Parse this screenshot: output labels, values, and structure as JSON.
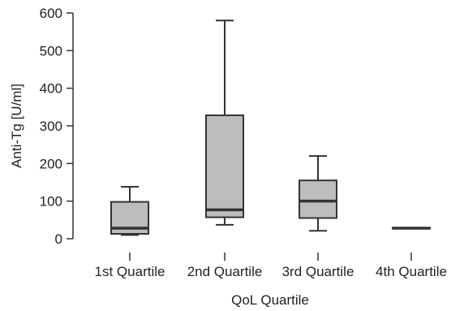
{
  "chart_data": {
    "type": "boxplot",
    "title": "",
    "xlabel": "QoL Quartile",
    "ylabel": "Anti-Tg [U/ml]",
    "ylim": [
      0,
      600
    ],
    "yticks": [
      0,
      100,
      200,
      300,
      400,
      500,
      600
    ],
    "grid": false,
    "categories": [
      "1st Quartile",
      "2nd Quartile",
      "3rd Quartile",
      "4th Quartile"
    ],
    "boxes": [
      {
        "category": "1st Quartile",
        "whisker_low": 10,
        "q1": 13,
        "median": 28,
        "q3": 98,
        "whisker_high": 138
      },
      {
        "category": "2nd Quartile",
        "whisker_low": 37,
        "q1": 57,
        "median": 77,
        "q3": 328,
        "whisker_high": 580
      },
      {
        "category": "3rd Quartile",
        "whisker_low": 21,
        "q1": 55,
        "median": 100,
        "q3": 155,
        "whisker_high": 220
      },
      {
        "category": "4th Quartile",
        "whisker_low": 27,
        "q1": 27,
        "median": 28,
        "q3": 29,
        "whisker_high": 29
      }
    ]
  }
}
